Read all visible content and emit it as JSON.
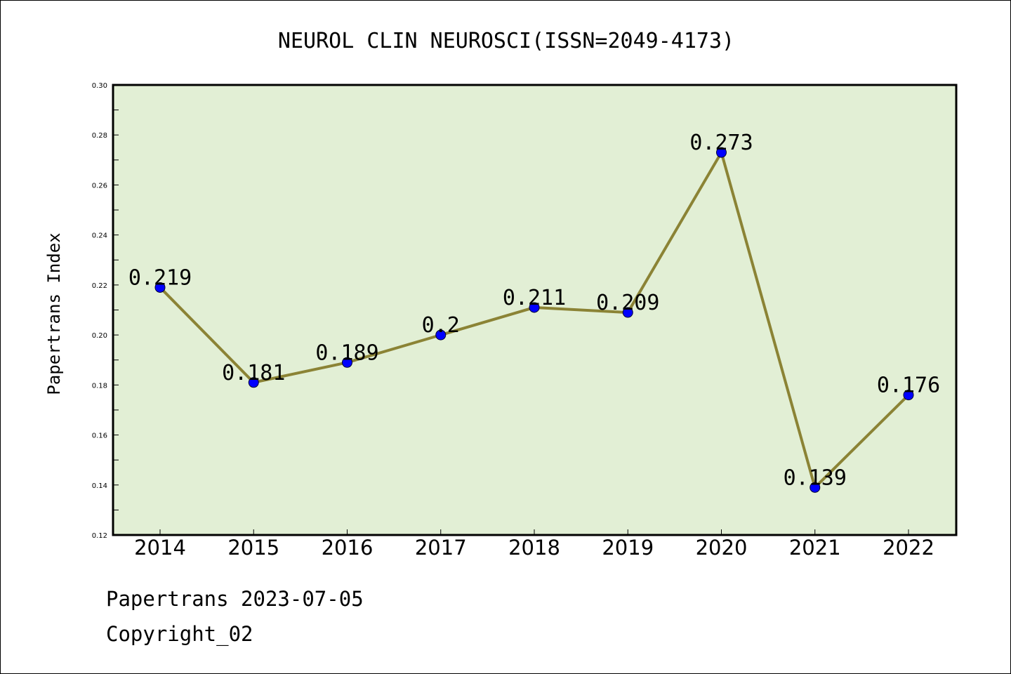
{
  "chart_data": {
    "type": "line",
    "title": "NEUROL CLIN NEUROSCI(ISSN=2049-4173)",
    "xlabel": "",
    "ylabel": "Papertrans Index",
    "categories": [
      "2014",
      "2015",
      "2016",
      "2017",
      "2018",
      "2019",
      "2020",
      "2021",
      "2022"
    ],
    "series": [
      {
        "values": [
          0.219,
          0.181,
          0.189,
          0.2,
          0.211,
          0.209,
          0.273,
          0.139,
          0.176
        ],
        "labels": [
          "0.219",
          "0.181",
          "0.189",
          "0.2",
          "0.211",
          "0.209",
          "0.273",
          "0.139",
          "0.176"
        ]
      }
    ],
    "ylim": [
      0.12,
      0.3
    ],
    "yticks": [
      0.12,
      0.14,
      0.16,
      0.18,
      0.2,
      0.22,
      0.24,
      0.26,
      0.28,
      0.3
    ],
    "ytick_labels": [
      "0.12",
      "0.14",
      "0.16",
      "0.18",
      "0.20",
      "0.22",
      "0.24",
      "0.26",
      "0.28",
      "0.30"
    ],
    "grid": false,
    "legend": "none"
  },
  "colors": {
    "plot_background": "#e2efd5",
    "line": "#8b8335",
    "marker": "#0000ff",
    "axes": "#000000"
  },
  "footer": {
    "source": "Papertrans 2023-07-05",
    "copyright": "Copyright_02"
  }
}
